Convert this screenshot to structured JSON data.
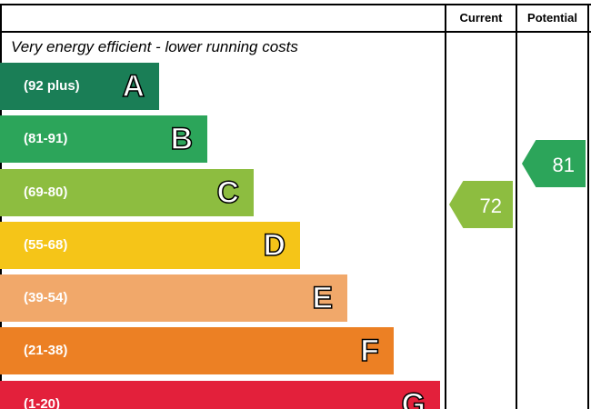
{
  "header": {
    "current": "Current",
    "potential": "Potential"
  },
  "top_label": "Very energy efficient - lower running costs",
  "bands": [
    {
      "range": "(92 plus)",
      "letter": "A",
      "color": "#1a7e56"
    },
    {
      "range": "(81-91)",
      "letter": "B",
      "color": "#2ca55a"
    },
    {
      "range": "(69-80)",
      "letter": "C",
      "color": "#8dbd40"
    },
    {
      "range": "(55-68)",
      "letter": "D",
      "color": "#f5c518"
    },
    {
      "range": "(39-54)",
      "letter": "E",
      "color": "#f1a86a"
    },
    {
      "range": "(21-38)",
      "letter": "F",
      "color": "#ec8024"
    },
    {
      "range": "(1-20)",
      "letter": "G",
      "color": "#e3203b"
    }
  ],
  "current": {
    "value": 72,
    "color": "#8dbd40"
  },
  "potential": {
    "value": 81,
    "color": "#2ca55a"
  }
}
